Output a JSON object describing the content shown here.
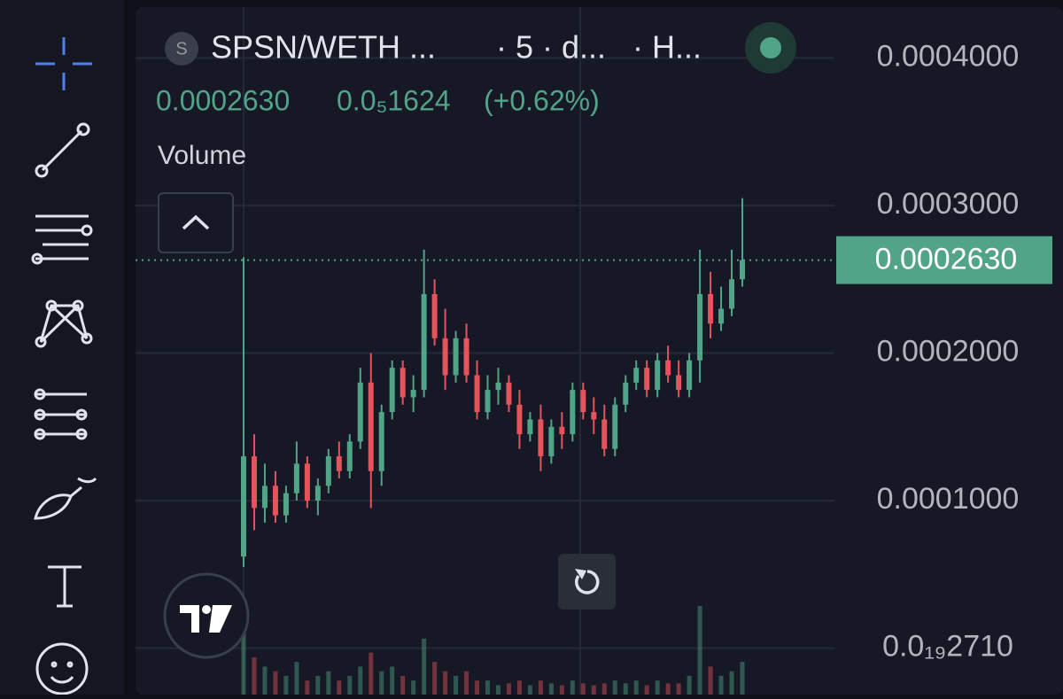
{
  "header": {
    "icon": "S",
    "symbol": "SPSN/WETH ...",
    "interval": "· 5 · d...",
    "source": "· H...",
    "price": "0.0002630",
    "change": "0.0₅1624",
    "change_pct": "(+0.62%)",
    "indicator": "Volume"
  },
  "chart_data": {
    "type": "candlestick",
    "ylim": [
      -3.15e-05,
      0.0004393
    ],
    "yticks": [
      {
        "value": 0.0004,
        "label": "0.0004000"
      },
      {
        "value": 0.0003,
        "label": "0.0003000"
      },
      {
        "value": 0.0002,
        "label": "0.0002000"
      },
      {
        "value": 0.0001,
        "label": "0.0001000"
      },
      {
        "value": 2.71e-23,
        "label": "0.0₁₉2710"
      }
    ],
    "grid": true,
    "up_color": "#52a488",
    "down_color": "#e3545c",
    "price_line": {
      "value": 0.000263,
      "label": "0.0002630"
    },
    "open": [
      6.2e-05,
      0.00013,
      9.5e-05,
      0.00011,
      9e-05,
      0.000105,
      0.000125,
      0.0001,
      0.00011,
      0.00013,
      0.00012,
      0.00014,
      0.00018,
      0.00012,
      0.00016,
      0.00019,
      0.00017,
      0.000175,
      0.00024,
      0.00021,
      0.000185,
      0.00021,
      0.000185,
      0.00016,
      0.000175,
      0.00018,
      0.000165,
      0.000145,
      0.000155,
      0.00013,
      0.00015,
      0.000145,
      0.000175,
      0.00016,
      0.000155,
      0.000135,
      0.000165,
      0.00018,
      0.00019,
      0.000175,
      0.000195,
      0.000185,
      0.000175,
      0.000195,
      0.00024,
      0.00022,
      0.00023,
      0.00025
    ],
    "high": [
      0.000265,
      0.000145,
      0.000125,
      0.00012,
      0.00011,
      0.00014,
      0.00013,
      0.000115,
      0.000135,
      0.00014,
      0.000145,
      0.00019,
      0.0002,
      0.000165,
      0.000195,
      0.000195,
      0.000185,
      0.00027,
      0.00025,
      0.00023,
      0.000215,
      0.00022,
      0.000195,
      0.000185,
      0.00019,
      0.000185,
      0.000175,
      0.00016,
      0.000165,
      0.000155,
      0.00016,
      0.00018,
      0.00018,
      0.00017,
      0.000165,
      0.00017,
      0.000185,
      0.000195,
      0.000195,
      0.0002,
      0.000205,
      0.000195,
      0.0002,
      0.00027,
      0.000255,
      0.000245,
      0.00027,
      0.000305
    ],
    "low": [
      5.5e-05,
      8e-05,
      8.5e-05,
      8.5e-05,
      8.5e-05,
      0.0001,
      9.5e-05,
      9e-05,
      0.000105,
      0.000115,
      0.000115,
      0.000135,
      9.5e-05,
      0.00011,
      0.000155,
      0.000165,
      0.00016,
      0.00017,
      0.000205,
      0.000175,
      0.00018,
      0.00018,
      0.000155,
      0.000155,
      0.000165,
      0.00016,
      0.000135,
      0.00014,
      0.00012,
      0.000125,
      0.000135,
      0.00014,
      0.000155,
      0.000145,
      0.00013,
      0.00013,
      0.00016,
      0.000175,
      0.00017,
      0.00017,
      0.00018,
      0.00017,
      0.00017,
      0.00018,
      0.00021,
      0.000215,
      0.000225,
      0.000245
    ],
    "close": [
      0.00013,
      9.5e-05,
      0.00011,
      9e-05,
      0.000105,
      0.000125,
      0.0001,
      0.00011,
      0.00013,
      0.00012,
      0.00014,
      0.00018,
      0.00012,
      0.00016,
      0.00019,
      0.00017,
      0.000175,
      0.00024,
      0.00021,
      0.000185,
      0.00021,
      0.000185,
      0.00016,
      0.000175,
      0.00018,
      0.000165,
      0.000145,
      0.000155,
      0.00013,
      0.00015,
      0.000145,
      0.000175,
      0.00016,
      0.000155,
      0.000135,
      0.000165,
      0.00018,
      0.00019,
      0.000175,
      0.000195,
      0.000185,
      0.000175,
      0.000195,
      0.00024,
      0.00022,
      0.00023,
      0.00025,
      0.000263
    ],
    "volume": [
      90,
      40,
      30,
      25,
      20,
      35,
      15,
      20,
      25,
      15,
      20,
      30,
      45,
      25,
      30,
      20,
      15,
      60,
      35,
      25,
      20,
      25,
      15,
      15,
      10,
      12,
      15,
      10,
      15,
      12,
      10,
      15,
      12,
      10,
      12,
      15,
      12,
      15,
      10,
      15,
      12,
      12,
      20,
      95,
      30,
      20,
      25,
      35
    ]
  }
}
